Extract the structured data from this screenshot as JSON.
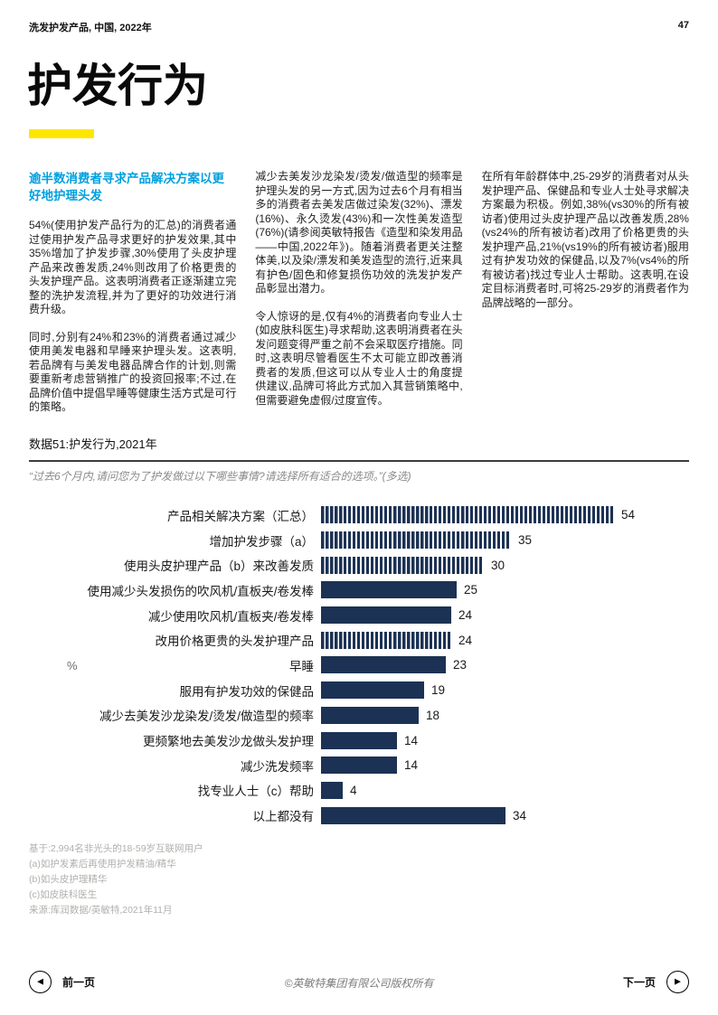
{
  "header": {
    "doc_title": "洗发护发产品, 中国, 2022年",
    "page_number": "47"
  },
  "title": "护发行为",
  "article": {
    "col1": {
      "heading": "逾半数消费者寻求产品解决方案以更好地护理头发",
      "p1": "54%(使用护发产品行为的汇总)的消费者通过使用护发产品寻求更好的护发效果,其中35%增加了护发步骤,30%使用了头皮护理产品来改善发质,24%则改用了价格更贵的头发护理产品。这表明消费者正逐渐建立完整的洗护发流程,并为了更好的功效进行消费升级。",
      "p2": "同时,分别有24%和23%的消费者通过减少使用美发电器和早睡来护理头发。这表明,若品牌有与美发电器品牌合作的计划,则需要重新考虑营销推广的投资回报率;不过,在品牌价值中提倡早睡等健康生活方式是可行的策略。"
    },
    "col2": {
      "p1": "减少去美发沙龙染发/烫发/做造型的频率是护理头发的另一方式,因为过去6个月有相当多的消费者去美发店做过染发(32%)、漂发(16%)、永久烫发(43%)和一次性美发造型(76%)(请参阅英敏特报告《造型和染发用品——中国,2022年》)。随着消费者更关注整体美,以及染/漂发和美发造型的流行,近来具有护色/固色和修复损伤功效的洗发护发产品彰显出潜力。",
      "p2": "令人惊讶的是,仅有4%的消费者向专业人士(如皮肤科医生)寻求帮助,这表明消费者在头发问题变得严重之前不会采取医疗措施。同时,这表明尽管看医生不太可能立即改善消费者的发质,但这可以从专业人士的角度提供建议,品牌可将此方式加入其营销策略中,但需要避免虚假/过度宣传。"
    },
    "col3": {
      "p1": "在所有年龄群体中,25-29岁的消费者对从头发护理产品、保健品和专业人士处寻求解决方案最为积极。例如,38%(vs30%的所有被访者)使用过头皮护理产品以改善发质,28%(vs24%的所有被访者)改用了价格更贵的头发护理产品,21%(vs19%的所有被访者)服用过有护发功效的保健品,以及7%(vs4%的所有被访者)找过专业人士帮助。这表明,在设定目标消费者时,可将25-29岁的消费者作为品牌战略的一部分。"
    }
  },
  "figure": {
    "caption": "数据51:护发行为,2021年",
    "question": "“过去6个月内,请问您为了护发做过以下哪些事情?请选择所有适合的选项。”(多选)",
    "footnotes": [
      "基于:2,994名非光头的18-59岁互联网用户",
      "(a)如护发素后再使用护发精油/精华",
      "(b)如头皮护理精华",
      "(c)如皮肤科医生",
      "来源:库润数据/英敏特,2021年11月"
    ]
  },
  "chart_data": {
    "type": "bar",
    "orientation": "horizontal",
    "title": "数据51:护发行为,2021年",
    "xlabel": "",
    "ylabel": "%",
    "xlim": [
      0,
      60
    ],
    "grid": false,
    "legend": "none",
    "categories": [
      "产品相关解决方案（汇总）",
      "增加护发步骤（a）",
      "使用头皮护理产品（b）来改善发质",
      "使用减少头发损伤的吹风机/直板夹/卷发棒",
      "减少使用吹风机/直板夹/卷发棒",
      "改用价格更贵的头发护理产品",
      "早睡",
      "服用有护发功效的保健品",
      "减少去美发沙龙染发/烫发/做造型的频率",
      "更频繁地去美发沙龙做头发护理",
      "减少洗发频率",
      "找专业人士（c）帮助",
      "以上都没有"
    ],
    "values": [
      54,
      35,
      30,
      25,
      24,
      24,
      23,
      19,
      18,
      14,
      14,
      4,
      34
    ],
    "bar_styles": [
      "striped",
      "striped",
      "striped",
      "solid",
      "solid",
      "striped",
      "solid",
      "solid",
      "solid",
      "solid",
      "solid",
      "solid",
      "solid"
    ],
    "colors": {
      "bar": "#1c3254"
    }
  },
  "footer_nav": {
    "prev_label": "前一页",
    "next_label": "下一页",
    "prev_icon": "left-triangle",
    "next_icon": "right-triangle",
    "copyright": "©英敏特集团有限公司版权所有"
  },
  "colors": {
    "accent_blue": "#00a0df",
    "accent_yellow": "#ffe600",
    "bar_navy": "#1c3254"
  }
}
